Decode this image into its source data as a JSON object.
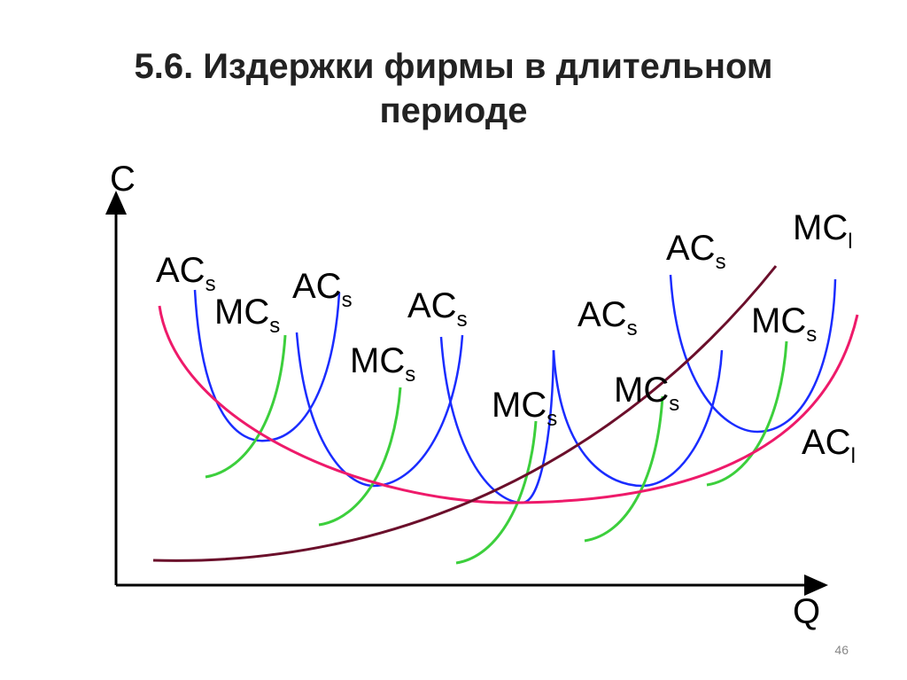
{
  "header": {
    "title_lines": [
      "5.6. Издержки фирмы в длительном",
      "периоде"
    ]
  },
  "axes": {
    "y_label": "C",
    "x_label": "Q"
  },
  "labels": [
    {
      "text": "AC",
      "sub": "s"
    },
    {
      "text": "MC",
      "sub": "s"
    },
    {
      "text": "AC",
      "sub": "s"
    },
    {
      "text": "MC",
      "sub": "s"
    },
    {
      "text": "AC",
      "sub": "s"
    },
    {
      "text": "MC",
      "sub": "s"
    },
    {
      "text": "AC",
      "sub": "s"
    },
    {
      "text": "MC",
      "sub": "s"
    },
    {
      "text": "AC",
      "sub": "s"
    },
    {
      "text": "MC",
      "sub": "l"
    },
    {
      "text": "MC",
      "sub": "s"
    },
    {
      "text": "AC",
      "sub": "l"
    }
  ],
  "page_number": "46"
}
